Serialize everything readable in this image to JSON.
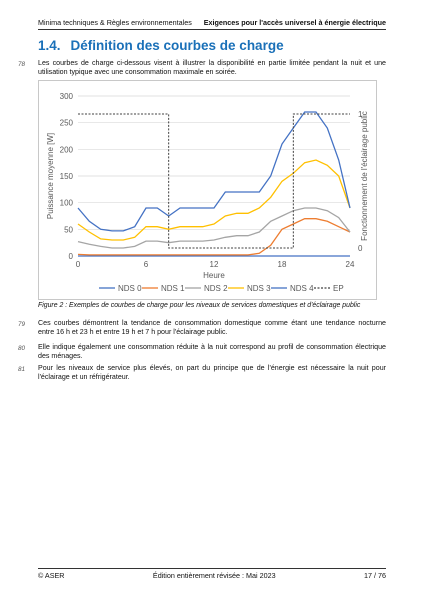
{
  "header": {
    "left": "Minima techniques & Règles environnementales",
    "right": "Exigences pour l'accès universel à énergie électrique"
  },
  "section": {
    "number": "1.4.",
    "title": "Définition des courbes de charge"
  },
  "paragraphs": [
    {
      "num": "78",
      "text": "Les courbes de charge ci-dessous visent à illustrer la disponibilité en partie limitée pendant la nuit et une utilisation typique avec une consommation maximale en soirée."
    },
    {
      "num": "79",
      "text": "Ces courbes démontrent la tendance de consommation domestique comme étant une tendance nocturne entre 16 h et 23 h et entre 19 h et 7 h pour l'éclairage public."
    },
    {
      "num": "80",
      "text": "Elle indique également une consommation réduite à la nuit correspond au profil de consommation électrique des ménages."
    },
    {
      "num": "81",
      "text": "Pour les niveaux de service plus élevés, on part du principe que de l'énergie est nécessaire la nuit pour l'éclairage et un réfrigérateur."
    }
  ],
  "caption": "Figure 2 : Exemples de courbes de charge pour les niveaux de services domestiques et d'éclairage public",
  "footer": {
    "left": "© ASER",
    "center": "Édition entièrement révisée : Mai 2023",
    "right": "17 / 76"
  },
  "chart_data": {
    "type": "line",
    "xlabel": "Heure",
    "ylabel": "Puissance moyenne [W]",
    "y2label": "Fonctionnement de l'éclairage public",
    "xlim": [
      0,
      24
    ],
    "ylim": [
      0,
      300
    ],
    "y2lim": [
      0,
      1
    ],
    "xticks": [
      0,
      6,
      12,
      18,
      24
    ],
    "yticks": [
      0,
      50,
      100,
      150,
      200,
      250,
      300
    ],
    "y2ticks": [
      0,
      1
    ],
    "grid": true,
    "legend_position": "bottom",
    "x": [
      0,
      1,
      2,
      3,
      4,
      5,
      6,
      7,
      8,
      9,
      10,
      11,
      12,
      13,
      14,
      15,
      16,
      17,
      18,
      19,
      20,
      21,
      22,
      23,
      24
    ],
    "series": [
      {
        "name": "NDS 0",
        "color": "#4472c4",
        "axis": "left",
        "values": [
          0,
          0,
          0,
          0,
          0,
          0,
          0,
          0,
          0,
          0,
          0,
          0,
          0,
          0,
          0,
          0,
          0,
          0,
          0,
          0,
          0,
          0,
          0,
          0,
          0
        ]
      },
      {
        "name": "NDS 1",
        "color": "#ed7d31",
        "axis": "left",
        "values": [
          3,
          2,
          2,
          2,
          2,
          2,
          2,
          2,
          2,
          2,
          2,
          2,
          2,
          2,
          2,
          2,
          5,
          20,
          50,
          60,
          70,
          70,
          65,
          55,
          45
        ]
      },
      {
        "name": "NDS 2",
        "color": "#a5a5a5",
        "axis": "left",
        "values": [
          27,
          22,
          18,
          15,
          15,
          18,
          28,
          28,
          25,
          28,
          28,
          28,
          30,
          35,
          38,
          38,
          45,
          65,
          75,
          85,
          90,
          90,
          85,
          72,
          45
        ]
      },
      {
        "name": "NDS 3",
        "color": "#ffc000",
        "axis": "left",
        "values": [
          60,
          45,
          32,
          30,
          30,
          35,
          55,
          55,
          50,
          55,
          55,
          55,
          60,
          75,
          80,
          80,
          90,
          110,
          140,
          155,
          175,
          180,
          170,
          150,
          90
        ]
      },
      {
        "name": "NDS 4",
        "color": "#4472c4",
        "axis": "left",
        "values": [
          90,
          65,
          50,
          47,
          47,
          55,
          90,
          90,
          75,
          90,
          90,
          90,
          90,
          120,
          120,
          120,
          120,
          150,
          210,
          240,
          270,
          270,
          240,
          180,
          90
        ]
      },
      {
        "name": "EP",
        "color": "#404040",
        "axis": "right",
        "dashed": true,
        "values": [
          1,
          1,
          1,
          1,
          1,
          1,
          1,
          1,
          0,
          0,
          0,
          0,
          0,
          0,
          0,
          0,
          0,
          0,
          0,
          1,
          1,
          1,
          1,
          1,
          1
        ]
      }
    ]
  }
}
